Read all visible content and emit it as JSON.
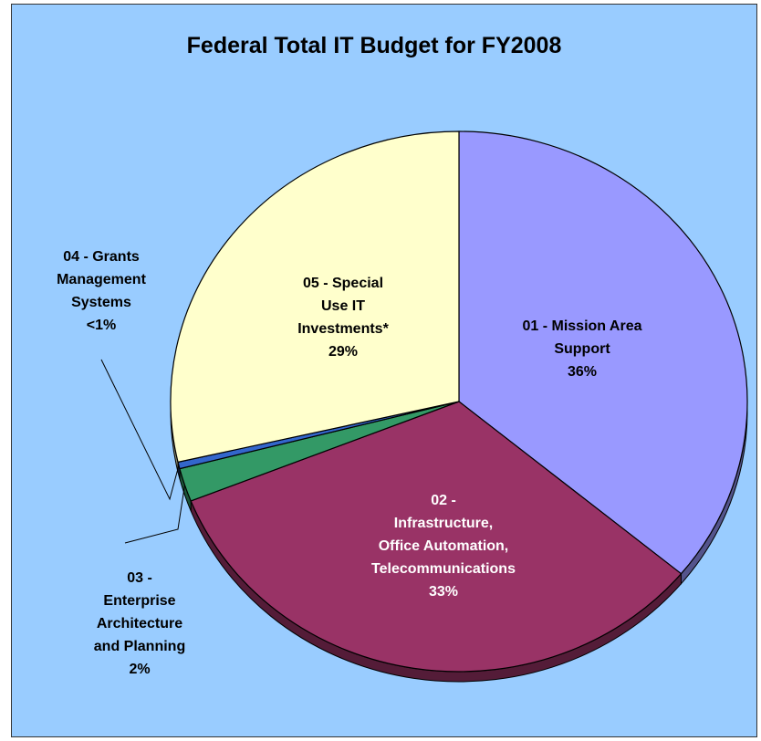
{
  "chart_data": {
    "type": "pie",
    "title": "Federal Total IT Budget for FY2008",
    "slices": [
      {
        "category": "01 - Mission Area Support",
        "label_lines": [
          "01 - Mission Area",
          "Support"
        ],
        "pct_label": "36%",
        "value": 36,
        "color": "#9999ff"
      },
      {
        "category": "02 - Infrastructure, Office Automation, Telecommunications",
        "label_lines": [
          "02 -",
          "Infrastructure,",
          "Office Automation,",
          "Telecommunications"
        ],
        "pct_label": "33%",
        "value": 33,
        "color": "#993366"
      },
      {
        "category": "03 - Enterprise Architecture and Planning",
        "label_lines": [
          "03 -",
          "Enterprise",
          "Architecture",
          "and Planning"
        ],
        "pct_label": "2%",
        "value": 2,
        "color": "#339966"
      },
      {
        "category": "04 - Grants Management Systems",
        "label_lines": [
          "04 - Grants",
          "Management",
          "Systems"
        ],
        "pct_label": "<1%",
        "value": 0.4,
        "color": "#3366cc"
      },
      {
        "category": "05 - Special Use IT Investments*",
        "label_lines": [
          "05 - Special",
          "Use IT",
          "Investments*"
        ],
        "pct_label": "29%",
        "value": 28.6,
        "color": "#ffffcc"
      }
    ]
  }
}
